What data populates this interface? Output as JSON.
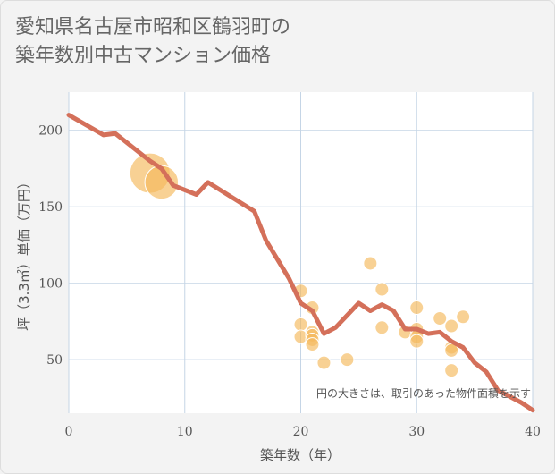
{
  "page": {
    "title_line1": "愛知県名古屋市昭和区鶴羽町の",
    "title_line2": "築年数別中古マンション価格"
  },
  "chart_data": {
    "type": "scatter",
    "xlabel": "築年数（年）",
    "ylabel": "坪（3.3㎡）単価（万円）",
    "note": "円の大きさは、取引のあった物件面積を示す",
    "xlim": [
      0,
      40
    ],
    "ylim": [
      15,
      225
    ],
    "xticks": [
      0,
      10,
      20,
      30,
      40
    ],
    "yticks": [
      50,
      100,
      150,
      200
    ],
    "grid": true,
    "line": {
      "x": [
        0,
        3,
        4,
        7,
        8,
        9,
        11,
        12,
        16,
        17,
        19,
        20,
        21,
        22,
        23,
        24,
        25,
        26,
        27,
        28,
        29,
        30,
        31,
        32,
        33,
        34,
        35,
        36,
        37,
        39,
        40
      ],
      "y": [
        210,
        197,
        198,
        180,
        175,
        164,
        158,
        166,
        147,
        128,
        103,
        87,
        82,
        67,
        71,
        79,
        87,
        82,
        86,
        82,
        70,
        70,
        67,
        68,
        62,
        58,
        48,
        42,
        30,
        22,
        17
      ]
    },
    "points": [
      {
        "x": 7,
        "y": 172,
        "size": 3.0
      },
      {
        "x": 8,
        "y": 166,
        "size": 2.5
      },
      {
        "x": 20,
        "y": 95,
        "size": 1
      },
      {
        "x": 20,
        "y": 73,
        "size": 1
      },
      {
        "x": 20,
        "y": 65,
        "size": 1
      },
      {
        "x": 21,
        "y": 84,
        "size": 1
      },
      {
        "x": 21,
        "y": 68,
        "size": 1
      },
      {
        "x": 21,
        "y": 66,
        "size": 1
      },
      {
        "x": 21,
        "y": 63,
        "size": 1
      },
      {
        "x": 21,
        "y": 60,
        "size": 1
      },
      {
        "x": 22,
        "y": 48,
        "size": 1
      },
      {
        "x": 24,
        "y": 50,
        "size": 1
      },
      {
        "x": 26,
        "y": 113,
        "size": 1
      },
      {
        "x": 27,
        "y": 96,
        "size": 1
      },
      {
        "x": 27,
        "y": 71,
        "size": 1
      },
      {
        "x": 29,
        "y": 68,
        "size": 1
      },
      {
        "x": 30,
        "y": 84,
        "size": 1
      },
      {
        "x": 30,
        "y": 70,
        "size": 1
      },
      {
        "x": 30,
        "y": 65,
        "size": 1
      },
      {
        "x": 30,
        "y": 62,
        "size": 1
      },
      {
        "x": 32,
        "y": 77,
        "size": 1
      },
      {
        "x": 33,
        "y": 72,
        "size": 1
      },
      {
        "x": 33,
        "y": 58,
        "size": 1
      },
      {
        "x": 33,
        "y": 56,
        "size": 1
      },
      {
        "x": 33,
        "y": 43,
        "size": 1
      },
      {
        "x": 34,
        "y": 78,
        "size": 1
      }
    ],
    "colors": {
      "line": "#d4705a",
      "point": "#f5b85a",
      "grid": "#c5d5e6",
      "plot_bg": "#ffffff"
    }
  }
}
